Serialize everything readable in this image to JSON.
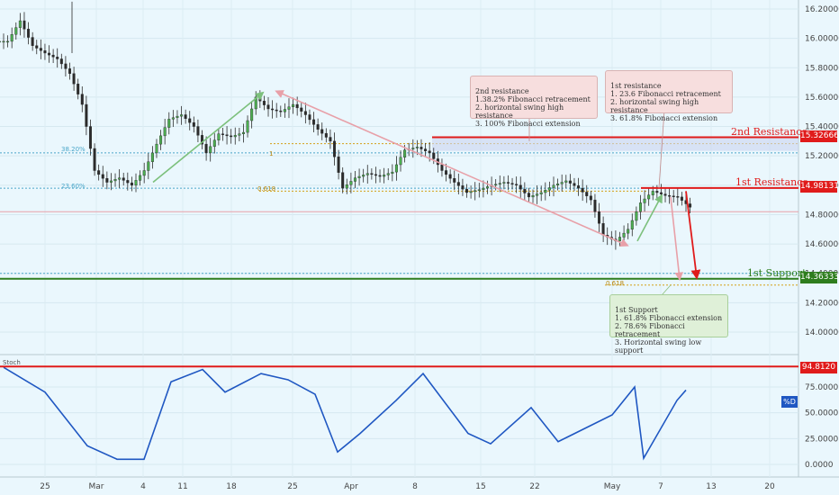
{
  "colors": {
    "background": "#eaf7fd",
    "candle": "#2b2b2b",
    "candle_up": "#4caf50",
    "resistance": "#e01b1b",
    "support": "#2e7d1e",
    "stoch": "#1f57c2",
    "overbought": "#e01b1b",
    "fib_38": "#4aa6c9",
    "fib_23": "#4aa6c9",
    "fib_618": "#d4a017",
    "green_arrow": "#7cc07c",
    "red_arrow": "#e8a0a8"
  },
  "price_axis": {
    "ticks": [
      "16.20000",
      "16.00000",
      "15.80000",
      "15.60000",
      "15.40000",
      "15.20000",
      "15.00000",
      "14.80000",
      "14.60000",
      "14.40000",
      "14.20000",
      "14.00000"
    ],
    "values": [
      16.2,
      16.0,
      15.8,
      15.6,
      15.4,
      15.2,
      15.0,
      14.8,
      14.6,
      14.4,
      14.2,
      14.0
    ]
  },
  "stoch_axis": {
    "ticks": [
      "75.0000",
      "50.0000",
      "25.0000",
      "0.0000"
    ],
    "values": [
      75,
      50,
      25,
      0
    ],
    "name": "Stoch",
    "badge_label": "%D"
  },
  "x_axis": {
    "ticks": [
      "25",
      "Mar",
      "4",
      "11",
      "18",
      "25",
      "Apr",
      "8",
      "15",
      "22",
      "May",
      "7",
      "13",
      "20"
    ]
  },
  "levels": {
    "second_resistance": {
      "label": "2nd Resistance",
      "price": "15.32666",
      "value": 15.32666
    },
    "first_resistance": {
      "label": "1st Resistance",
      "price": "14.98131",
      "value": 14.98131
    },
    "first_support": {
      "label": "1st Support",
      "price": "14.36333",
      "value": 14.36333
    },
    "stoch_overbought": {
      "price": "94.8120",
      "value": 94.812
    }
  },
  "fib_labels": {
    "r382": "38.20%",
    "r236": "23.60%",
    "e618_top": "0.618",
    "one": "1",
    "e618_bottom": "0.618"
  },
  "annotations": {
    "second_resistance": "2nd resistance\n1.38.2% Fibonacci retracement\n2. horizontal swing high resistance\n3. 100% Fibonacci extension",
    "first_resistance": "1st resistance\n1. 23.6 Fibonacci retracement\n2. horizontal swing high resistance\n3. 61.8% Fibonacci extension",
    "first_support": "1st Support\n1. 61.8% Fibonacci extension\n2. 78.6% Fibonacci retracement\n3. Horizontal swing low support"
  },
  "chart_data": {
    "type": "line",
    "title": "",
    "price_series": {
      "x": [
        "Feb 21",
        "Feb 22",
        "Feb 25",
        "Feb 26",
        "Feb 27",
        "Feb 28",
        "Mar 1",
        "Mar 4",
        "Mar 5",
        "Mar 6",
        "Mar 7",
        "Mar 8",
        "Mar 11",
        "Mar 12",
        "Mar 13",
        "Mar 14",
        "Mar 15",
        "Mar 18",
        "Mar 19",
        "Mar 20",
        "Mar 21",
        "Mar 22",
        "Mar 25",
        "Mar 26",
        "Mar 27",
        "Mar 28",
        "Mar 29",
        "Apr 1",
        "Apr 2",
        "Apr 3",
        "Apr 4",
        "Apr 5",
        "Apr 8",
        "Apr 9",
        "Apr 10",
        "Apr 11",
        "Apr 12",
        "Apr 15",
        "Apr 16",
        "Apr 17",
        "Apr 18",
        "Apr 19",
        "Apr 22",
        "Apr 23",
        "Apr 24",
        "Apr 25",
        "Apr 26",
        "Apr 29",
        "Apr 30",
        "May 1",
        "May 2",
        "May 3",
        "May 6",
        "May 7",
        "May 8",
        "May 9"
      ],
      "close": [
        15.98,
        16.12,
        15.95,
        15.9,
        15.86,
        15.76,
        15.55,
        15.1,
        15.02,
        15.05,
        15.0,
        15.1,
        15.28,
        15.45,
        15.48,
        15.4,
        15.22,
        15.35,
        15.33,
        15.36,
        15.6,
        15.52,
        15.5,
        15.55,
        15.48,
        15.38,
        15.3,
        14.98,
        15.05,
        15.08,
        15.06,
        15.09,
        15.24,
        15.26,
        15.22,
        15.1,
        15.02,
        14.95,
        14.97,
        15.0,
        15.02,
        15.0,
        14.92,
        14.95,
        15.0,
        15.03,
        14.98,
        14.9,
        14.66,
        14.62,
        14.7,
        14.88,
        14.96,
        14.93,
        14.92,
        14.85
      ]
    },
    "stoch_series": {
      "x": [
        "Feb 21",
        "Feb 25",
        "Feb 28",
        "Mar 4",
        "Mar 7",
        "Mar 11",
        "Mar 14",
        "Mar 18",
        "Mar 21",
        "Mar 25",
        "Mar 28",
        "Apr 1",
        "Apr 4",
        "Apr 8",
        "Apr 11",
        "Apr 15",
        "Apr 18",
        "Apr 22",
        "Apr 25",
        "Apr 29",
        "May 2",
        "May 6",
        "May 8",
        "May 9"
      ],
      "values": [
        94,
        70,
        18,
        5,
        5,
        80,
        92,
        70,
        88,
        82,
        68,
        12,
        30,
        62,
        88,
        30,
        20,
        55,
        22,
        48,
        75,
        6,
        62,
        72
      ]
    },
    "levels": [
      15.32666,
      14.98131,
      14.36333
    ],
    "ylim": [
      13.9,
      16.25
    ],
    "stoch_ylim": [
      0,
      100
    ],
    "grid": true
  }
}
